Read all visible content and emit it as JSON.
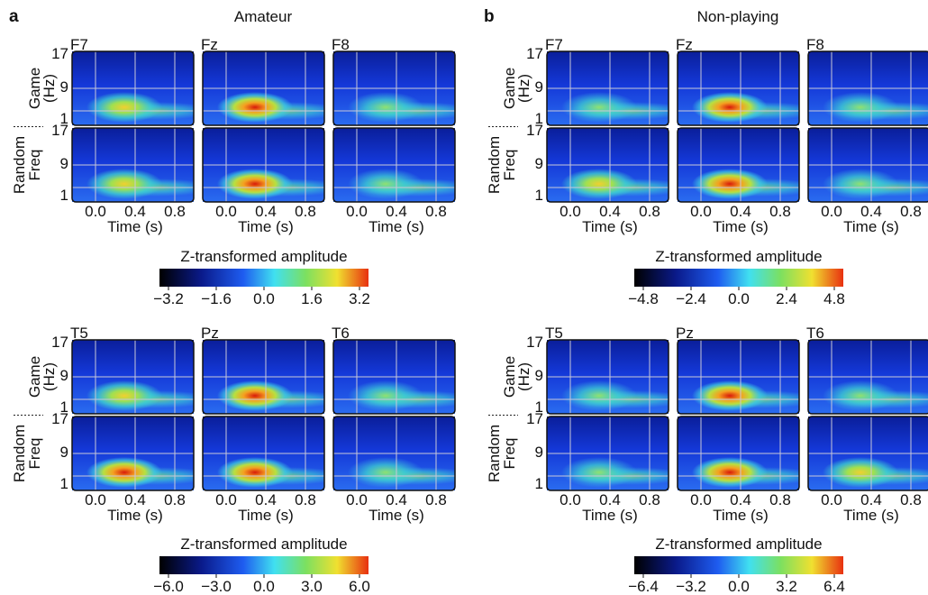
{
  "panels": [
    {
      "label": "a",
      "title": "Amateur",
      "groups": [
        {
          "electrodes": [
            "F7",
            "Fz",
            "F8"
          ],
          "rows": [
            "Game",
            "Random"
          ],
          "y_name": "Freq",
          "y_unit": "(Hz)",
          "yticks": [
            "17",
            "9",
            "1"
          ],
          "xticks": [
            "0.0",
            "0.4",
            "0.8"
          ],
          "xlabel": "Time (s)",
          "colorbar": {
            "title": "Z-transformed amplitude",
            "ticks": [
              "−3.2",
              "−1.6",
              "0.0",
              "1.6",
              "3.2"
            ]
          }
        },
        {
          "electrodes": [
            "T5",
            "Pz",
            "T6"
          ],
          "rows": [
            "Game",
            "Random"
          ],
          "y_name": "Freq",
          "y_unit": "(Hz)",
          "yticks": [
            "17",
            "9",
            "1"
          ],
          "xticks": [
            "0.0",
            "0.4",
            "0.8"
          ],
          "xlabel": "Time (s)",
          "colorbar": {
            "title": "Z-transformed amplitude",
            "ticks": [
              "−6.0",
              "−3.0",
              "0.0",
              "3.0",
              "6.0"
            ]
          }
        }
      ]
    },
    {
      "label": "b",
      "title": "Non-playing",
      "groups": [
        {
          "electrodes": [
            "F7",
            "Fz",
            "F8"
          ],
          "rows": [
            "Game",
            "Random"
          ],
          "y_name": "Freq",
          "y_unit": "(Hz)",
          "yticks": [
            "17",
            "9",
            "1"
          ],
          "xticks": [
            "0.0",
            "0.4",
            "0.8"
          ],
          "xlabel": "Time (s)",
          "colorbar": {
            "title": "Z-transformed amplitude",
            "ticks": [
              "−4.8",
              "−2.4",
              "0.0",
              "2.4",
              "4.8"
            ]
          }
        },
        {
          "electrodes": [
            "T5",
            "Pz",
            "T6"
          ],
          "rows": [
            "Game",
            "Random"
          ],
          "y_name": "Freq",
          "y_unit": "(Hz)",
          "yticks": [
            "17",
            "9",
            "1"
          ],
          "xticks": [
            "0.0",
            "0.4",
            "0.8"
          ],
          "xlabel": "Time (s)",
          "colorbar": {
            "title": "Z-transformed amplitude",
            "ticks": [
              "−6.4",
              "−3.2",
              "0.0",
              "3.2",
              "6.4"
            ]
          }
        }
      ]
    }
  ]
}
